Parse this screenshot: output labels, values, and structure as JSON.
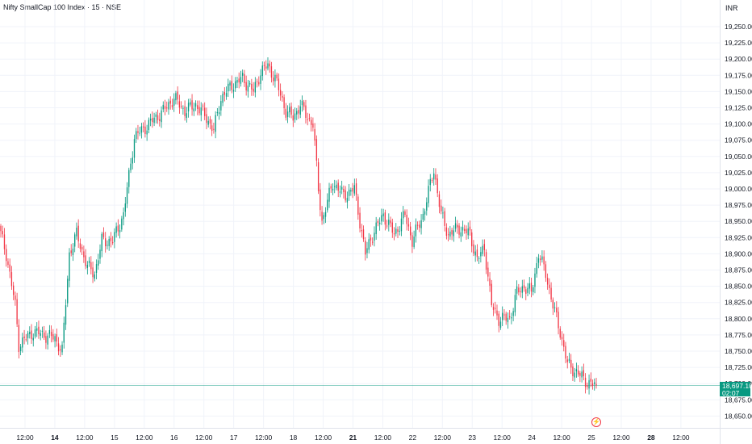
{
  "header": {
    "title": "Nifty SmallCap 100 Index · 15 · NSE",
    "currency": "INR"
  },
  "last_price": {
    "value": "18,697.10",
    "countdown": "02:07",
    "color": "#089981"
  },
  "colors": {
    "up": "#089981",
    "down": "#f23645",
    "grid": "#f0f3fa"
  },
  "markers": {
    "dividend_icon": "lightning-icon"
  },
  "chart_data": {
    "type": "candlestick",
    "title": "Nifty SmallCap 100 Index · 15 · NSE",
    "ylim": [
      18637.5,
      19262.5
    ],
    "y_ticks": [
      "19,250.00",
      "19,225.00",
      "19,200.00",
      "19,175.00",
      "19,150.00",
      "19,125.00",
      "19,100.00",
      "19,075.00",
      "19,050.00",
      "19,025.00",
      "19,000.00",
      "18,975.00",
      "18,950.00",
      "18,925.00",
      "18,900.00",
      "18,875.00",
      "18,850.00",
      "18,825.00",
      "18,800.00",
      "18,775.00",
      "18,750.00",
      "18,725.00",
      "18,700.00",
      "18,675.00",
      "18,650.00"
    ],
    "x_ticks": [
      {
        "label": "12:00",
        "bold": false
      },
      {
        "label": "14",
        "bold": true
      },
      {
        "label": "12:00",
        "bold": false
      },
      {
        "label": "15",
        "bold": false
      },
      {
        "label": "12:00",
        "bold": false
      },
      {
        "label": "16",
        "bold": false
      },
      {
        "label": "12:00",
        "bold": false
      },
      {
        "label": "17",
        "bold": false
      },
      {
        "label": "12:00",
        "bold": false
      },
      {
        "label": "18",
        "bold": false
      },
      {
        "label": "12:00",
        "bold": false
      },
      {
        "label": "21",
        "bold": true
      },
      {
        "label": "12:00",
        "bold": false
      },
      {
        "label": "22",
        "bold": false
      },
      {
        "label": "12:00",
        "bold": false
      },
      {
        "label": "23",
        "bold": false
      },
      {
        "label": "12:00",
        "bold": false
      },
      {
        "label": "24",
        "bold": false
      },
      {
        "label": "12:00",
        "bold": false
      },
      {
        "label": "25",
        "bold": false
      },
      {
        "label": "12:00",
        "bold": false
      },
      {
        "label": "28",
        "bold": true
      },
      {
        "label": "12:00",
        "bold": false
      }
    ],
    "anchors": [
      [
        0,
        18930
      ],
      [
        3,
        18900
      ],
      [
        8,
        18820
      ],
      [
        10,
        18760
      ],
      [
        18,
        18780
      ],
      [
        30,
        18770
      ],
      [
        34,
        18750
      ],
      [
        38,
        18900
      ],
      [
        42,
        18930
      ],
      [
        48,
        18880
      ],
      [
        52,
        18870
      ],
      [
        56,
        18920
      ],
      [
        62,
        18920
      ],
      [
        68,
        18960
      ],
      [
        74,
        19080
      ],
      [
        82,
        19100
      ],
      [
        90,
        19120
      ],
      [
        96,
        19140
      ],
      [
        102,
        19120
      ],
      [
        108,
        19130
      ],
      [
        114,
        19110
      ],
      [
        118,
        19090
      ],
      [
        122,
        19140
      ],
      [
        128,
        19160
      ],
      [
        134,
        19170
      ],
      [
        140,
        19150
      ],
      [
        144,
        19180
      ],
      [
        148,
        19190
      ],
      [
        152,
        19170
      ],
      [
        158,
        19120
      ],
      [
        162,
        19110
      ],
      [
        166,
        19130
      ],
      [
        170,
        19110
      ],
      [
        173,
        19100
      ],
      [
        176,
        19000
      ],
      [
        178,
        18950
      ],
      [
        184,
        19010
      ],
      [
        190,
        18990
      ],
      [
        196,
        19000
      ],
      [
        202,
        18900
      ],
      [
        206,
        18930
      ],
      [
        212,
        18960
      ],
      [
        218,
        18930
      ],
      [
        224,
        18960
      ],
      [
        228,
        18920
      ],
      [
        234,
        18960
      ],
      [
        240,
        19030
      ],
      [
        244,
        18960
      ],
      [
        248,
        18930
      ],
      [
        254,
        18940
      ],
      [
        260,
        18930
      ],
      [
        264,
        18890
      ],
      [
        268,
        18910
      ],
      [
        272,
        18820
      ],
      [
        276,
        18800
      ],
      [
        282,
        18800
      ],
      [
        286,
        18840
      ],
      [
        290,
        18850
      ],
      [
        294,
        18840
      ],
      [
        298,
        18900
      ],
      [
        302,
        18870
      ],
      [
        306,
        18820
      ],
      [
        310,
        18780
      ],
      [
        314,
        18730
      ],
      [
        318,
        18720
      ],
      [
        322,
        18710
      ],
      [
        326,
        18700
      ],
      [
        330,
        18697.1
      ]
    ],
    "last_price": 18697.1
  }
}
